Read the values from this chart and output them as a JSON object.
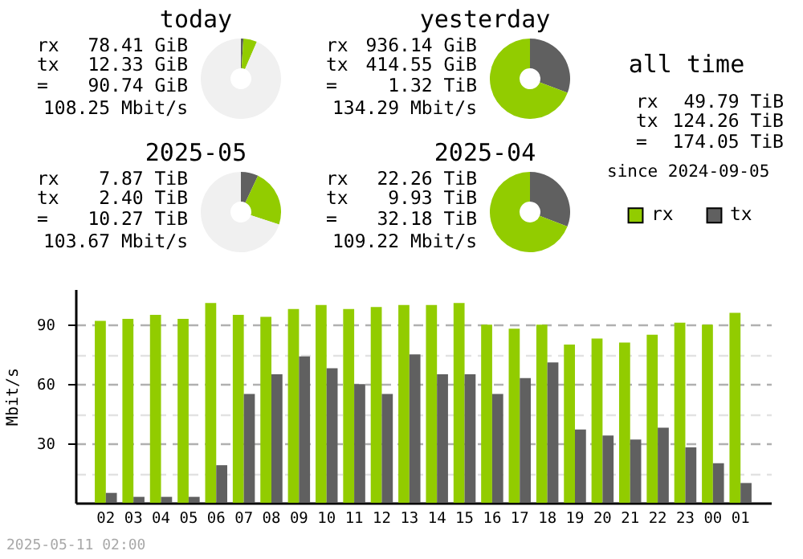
{
  "chart_data": [
    {
      "type": "donut",
      "title": "today",
      "categories": [
        null,
        null,
        null
      ],
      "values": [
        1,
        5.5,
        93.5
      ],
      "colors": [
        "#606060",
        "#92cc00",
        "#f0f0f0"
      ],
      "annotations": [
        "rx 78.41 GiB",
        "tx 12.33 GiB",
        "= 90.74 GiB",
        "108.25 Mbit/s"
      ]
    },
    {
      "type": "donut",
      "title": "yesterday",
      "categories": [
        null,
        null
      ],
      "values": [
        30.7,
        69.3
      ],
      "colors": [
        "#606060",
        "#92cc00"
      ],
      "annotations": [
        "rx 936.14 GiB",
        "tx 414.55 GiB",
        "= 1.32 TiB",
        "134.29 Mbit/s"
      ]
    },
    {
      "type": "donut",
      "title": "2025-05",
      "categories": [
        null,
        null,
        null
      ],
      "values": [
        7,
        23,
        70
      ],
      "colors": [
        "#606060",
        "#92cc00",
        "#f0f0f0"
      ],
      "annotations": [
        "rx 7.87 TiB",
        "tx 2.40 TiB",
        "= 10.27 TiB",
        "103.67 Mbit/s"
      ]
    },
    {
      "type": "donut",
      "title": "2025-04",
      "categories": [
        null,
        null
      ],
      "values": [
        30.9,
        69.1
      ],
      "colors": [
        "#606060",
        "#92cc00"
      ],
      "annotations": [
        "rx 22.26 TiB",
        "tx 9.93 TiB",
        "= 32.18 TiB",
        "109.22 Mbit/s"
      ]
    },
    {
      "type": "other",
      "title": "all time",
      "annotations": [
        "rx 49.79 TiB",
        "tx 124.26 TiB",
        "= 174.05 TiB",
        "since 2024-09-05"
      ]
    },
    {
      "type": "bar",
      "ylabel": "Mbit/s",
      "categories": [
        "02",
        "03",
        "04",
        "05",
        "06",
        "07",
        "08",
        "09",
        "10",
        "11",
        "12",
        "13",
        "14",
        "15",
        "16",
        "17",
        "18",
        "19",
        "20",
        "21",
        "22",
        "23",
        "00",
        "01"
      ],
      "series": [
        {
          "name": "rx",
          "color": "#92cc00",
          "values": [
            92,
            93,
            95,
            93,
            101,
            95,
            94,
            98,
            100,
            98,
            99,
            100,
            100,
            101,
            90,
            88,
            90,
            80,
            83,
            81,
            85,
            91,
            90,
            96
          ]
        },
        {
          "name": "tx",
          "color": "#606060",
          "values": [
            5,
            3,
            3,
            3,
            19,
            55,
            65,
            74,
            68,
            60,
            55,
            75,
            65,
            65,
            55,
            63,
            71,
            37,
            34,
            32,
            38,
            28,
            20,
            10
          ]
        }
      ],
      "ylim": [
        0,
        108
      ],
      "yticks": [
        {
          "value": 15,
          "label": null
        },
        30,
        {
          "value": 45,
          "label": null
        },
        60,
        {
          "value": 75,
          "label": null
        },
        90
      ],
      "grid": "y",
      "legend": "top right",
      "annotations": [
        "2025-05-11 02:00"
      ]
    }
  ]
}
